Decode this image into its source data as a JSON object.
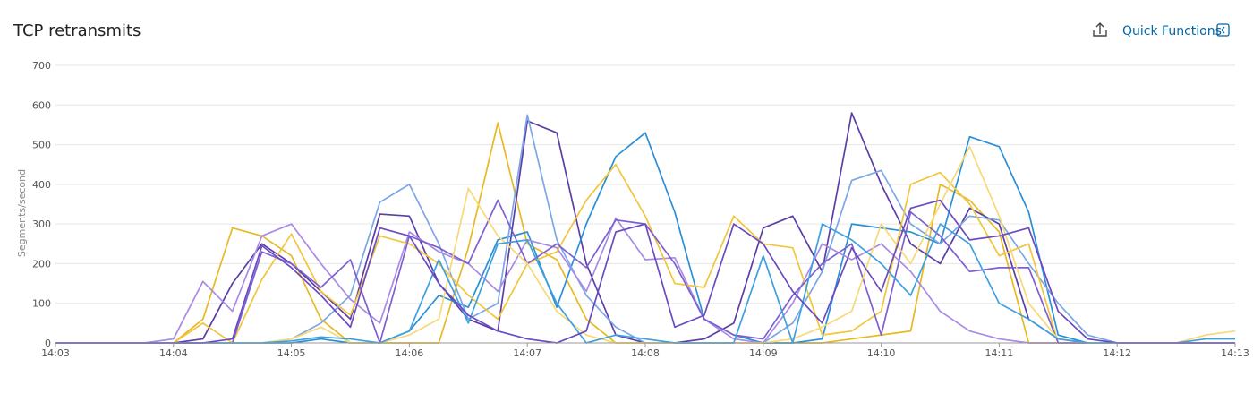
{
  "chart_data": {
    "type": "line",
    "title": "TCP retransmits",
    "ylabel": "Segments/second",
    "x": [
      843,
      843.25,
      843.5,
      843.75,
      844,
      844.25,
      844.5,
      844.75,
      845,
      845.25,
      845.5,
      845.75,
      846,
      846.25,
      846.5,
      846.75,
      847,
      847.25,
      847.5,
      847.75,
      848,
      848.25,
      848.5,
      848.75,
      849,
      849.25,
      849.5,
      849.75,
      850,
      850.25,
      850.5,
      850.75,
      851,
      851.25,
      851.5,
      851.75,
      852,
      852.25,
      852.5,
      852.75,
      853
    ],
    "xlim": [
      843,
      853
    ],
    "xticks": [
      {
        "value": 843,
        "label": "14:03"
      },
      {
        "value": 844,
        "label": "14:04"
      },
      {
        "value": 845,
        "label": "14:05"
      },
      {
        "value": 846,
        "label": "14:06"
      },
      {
        "value": 847,
        "label": "14:07"
      },
      {
        "value": 848,
        "label": "14:08"
      },
      {
        "value": 849,
        "label": "14:09"
      },
      {
        "value": 850,
        "label": "14:10"
      },
      {
        "value": 851,
        "label": "14:11"
      },
      {
        "value": 852,
        "label": "14:12"
      },
      {
        "value": 853,
        "label": "14:13"
      }
    ],
    "ylim": [
      0,
      700
    ],
    "yticks": [
      0,
      100,
      200,
      300,
      400,
      500,
      600,
      700
    ],
    "grid": true,
    "series": [
      {
        "color": "#e8b923",
        "values": [
          0,
          0,
          0,
          0,
          0,
          60,
          290,
          270,
          220,
          60,
          0,
          0,
          0,
          0,
          240,
          555,
          250,
          210,
          60,
          0,
          0,
          0,
          0,
          0,
          0,
          0,
          0,
          10,
          20,
          30,
          400,
          360,
          280,
          0,
          0,
          0,
          0,
          0,
          0,
          0,
          0
        ]
      },
      {
        "color": "#5b3ea6",
        "values": [
          0,
          0,
          0,
          0,
          0,
          10,
          150,
          250,
          200,
          130,
          60,
          325,
          320,
          150,
          60,
          30,
          560,
          530,
          200,
          20,
          0,
          0,
          10,
          50,
          290,
          320,
          180,
          580,
          400,
          250,
          200,
          340,
          300,
          60,
          10,
          0,
          0,
          0,
          0,
          0,
          0
        ]
      },
      {
        "color": "#2b8fd6",
        "values": [
          0,
          0,
          0,
          0,
          0,
          0,
          0,
          0,
          0,
          10,
          0,
          0,
          30,
          120,
          90,
          260,
          280,
          90,
          300,
          470,
          530,
          330,
          60,
          20,
          0,
          0,
          10,
          300,
          290,
          280,
          250,
          520,
          495,
          330,
          20,
          0,
          0,
          0,
          0,
          0,
          0
        ]
      },
      {
        "color": "#7ba7e6",
        "values": [
          0,
          0,
          0,
          0,
          0,
          0,
          0,
          0,
          10,
          50,
          120,
          355,
          400,
          250,
          60,
          100,
          575,
          260,
          120,
          40,
          0,
          0,
          0,
          0,
          0,
          50,
          180,
          410,
          435,
          300,
          250,
          320,
          310,
          200,
          100,
          20,
          0,
          0,
          0,
          0,
          0
        ]
      },
      {
        "color": "#a98ae6",
        "values": [
          0,
          0,
          0,
          0,
          10,
          155,
          80,
          270,
          300,
          200,
          110,
          50,
          280,
          230,
          200,
          130,
          260,
          240,
          130,
          315,
          210,
          215,
          60,
          10,
          0,
          100,
          250,
          210,
          250,
          180,
          80,
          30,
          10,
          0,
          0,
          0,
          0,
          0,
          0,
          0,
          0
        ]
      },
      {
        "color": "#f2c53d",
        "values": [
          0,
          0,
          0,
          0,
          0,
          50,
          0,
          160,
          275,
          130,
          70,
          270,
          250,
          200,
          120,
          60,
          200,
          230,
          360,
          450,
          320,
          150,
          140,
          320,
          250,
          240,
          20,
          30,
          80,
          400,
          430,
          350,
          220,
          250,
          0,
          0,
          0,
          0,
          0,
          0,
          0
        ]
      },
      {
        "color": "#7d5fd0",
        "values": [
          0,
          0,
          0,
          0,
          0,
          0,
          0,
          230,
          200,
          140,
          210,
          0,
          270,
          240,
          200,
          360,
          200,
          250,
          190,
          310,
          300,
          200,
          60,
          20,
          10,
          120,
          200,
          250,
          20,
          330,
          270,
          180,
          190,
          190,
          0,
          0,
          0,
          0,
          0,
          0,
          0
        ]
      },
      {
        "color": "#f7d978",
        "values": [
          0,
          0,
          0,
          0,
          0,
          0,
          0,
          0,
          10,
          40,
          0,
          0,
          20,
          60,
          390,
          270,
          200,
          80,
          20,
          0,
          0,
          0,
          0,
          0,
          0,
          10,
          40,
          80,
          300,
          200,
          350,
          495,
          320,
          100,
          10,
          0,
          0,
          0,
          0,
          20,
          30
        ]
      },
      {
        "color": "#3ea0e0",
        "values": [
          0,
          0,
          0,
          0,
          0,
          0,
          0,
          0,
          5,
          15,
          10,
          0,
          30,
          210,
          50,
          250,
          260,
          100,
          0,
          20,
          10,
          0,
          0,
          0,
          220,
          0,
          300,
          260,
          200,
          120,
          300,
          250,
          100,
          60,
          10,
          0,
          0,
          0,
          0,
          10,
          10
        ]
      },
      {
        "color": "#6a4bc2",
        "values": [
          0,
          0,
          0,
          0,
          0,
          0,
          10,
          245,
          190,
          120,
          40,
          290,
          270,
          150,
          70,
          30,
          10,
          0,
          30,
          280,
          300,
          40,
          70,
          300,
          250,
          130,
          50,
          240,
          130,
          340,
          360,
          260,
          270,
          290,
          80,
          10,
          0,
          0,
          0,
          0,
          0
        ]
      }
    ]
  },
  "toolbar": {
    "quick_functions": "Quick Functions"
  }
}
